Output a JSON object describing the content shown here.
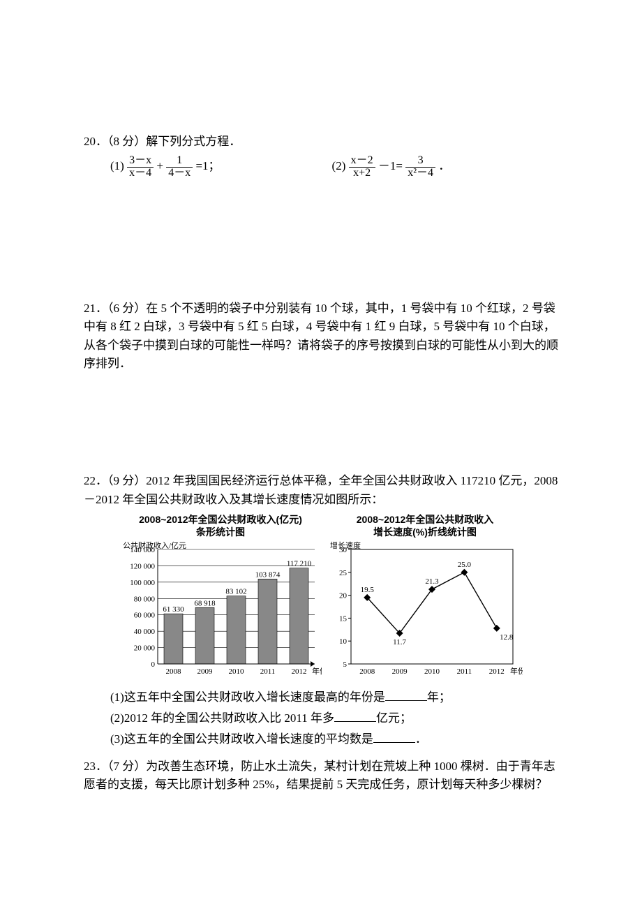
{
  "q20": {
    "label": "20．（8 分）解下列分式方程．",
    "eqs": [
      "eq1",
      "eq2"
    ]
  },
  "eq1": {
    "lead": "(1)",
    "p1num": "3－x",
    "p1den": "x－4",
    "plus": "+",
    "p2num": "1",
    "p2den": "4－x",
    "tail": "=1；"
  },
  "eq2": {
    "lead": "(2)",
    "p1num": "x－2",
    "p1den": "x+2",
    "mid": "－1=",
    "p2num": "3",
    "p2den": "x²－4",
    "tail": "．"
  },
  "q21": {
    "label": "21．（6 分）在 5 个不透明的袋子中分别装有 10 个球，其中，1 号袋中有 10 个红球，2 号袋中有 8 红 2 白球，3 号袋中有 5 红 5 白球，4 号袋中有 1 红 9 白球，5 号袋中有 10 个白球，从各个袋子中摸到白球的可能性一样吗？请将袋子的序号按摸到白球的可能性从小到大的顺序排列．"
  },
  "q22": {
    "label": "22．（9 分）2012 年我国国民经济运行总体平稳，全年全国公共财政收入 117210 亿元，2008－2012 年全国公共财政收入及其增长速度情况如图所示：",
    "sub1_a": "(1)这五年中全国公共财政收入增长速度最高的年份是",
    "sub1_b": "年；",
    "sub2_a": "(2)2012 年的全国公共财政收入比 2011 年多",
    "sub2_b": "亿元；",
    "sub3_a": "(3)这五年的全国公共财政收入增长速度的平均数是",
    "sub3_b": "．"
  },
  "q23": {
    "label": "23．（7 分）为改善生态环境，防止水土流失，某村计划在荒坡上种 1000 棵树．由于青年志愿者的支援，每天比原计划多种 25%，结果提前 5 天完成任务，原计划每天种多少棵树？"
  },
  "bar_chart": {
    "type": "bar",
    "title_l1": "2008~2012年全国公共财政收入(亿元)",
    "title_l2": "条形统计图",
    "y_label": "公共财政收入/亿元",
    "x_label": "年份",
    "years": [
      "2008",
      "2009",
      "2010",
      "2011",
      "2012"
    ],
    "values": [
      61330,
      68918,
      83102,
      103874,
      117210
    ],
    "value_labels": [
      "61 330",
      "68 918",
      "83 102",
      "103 874",
      "117 210"
    ],
    "y_max": 140000,
    "y_step": 20000,
    "y_ticks": [
      "0",
      "20 000",
      "40 000",
      "60 000",
      "80 000",
      "100 000",
      "120 000",
      "140 000"
    ],
    "bar_fill": "#888888",
    "grid_color": "#000000",
    "bg": "#ffffff",
    "axis_stroke": "#000000",
    "font_size_tick": 11,
    "font_size_label": 11
  },
  "line_chart": {
    "type": "line",
    "title_l1": "2008~2012年全国公共财政收入",
    "title_l2": "增长速度(%)折线统计图",
    "y_label": "增长速度",
    "x_label": "年份",
    "years": [
      "2008",
      "2009",
      "2010",
      "2011",
      "2012"
    ],
    "values": [
      19.5,
      11.7,
      21.3,
      25.0,
      12.8
    ],
    "y_min": 5,
    "y_max": 30,
    "y_step": 5,
    "y_ticks": [
      "5",
      "10",
      "15",
      "20",
      "25",
      "30"
    ],
    "line_color": "#000000",
    "marker_fill": "#000000",
    "bg": "#ffffff",
    "font_size_tick": 11
  }
}
